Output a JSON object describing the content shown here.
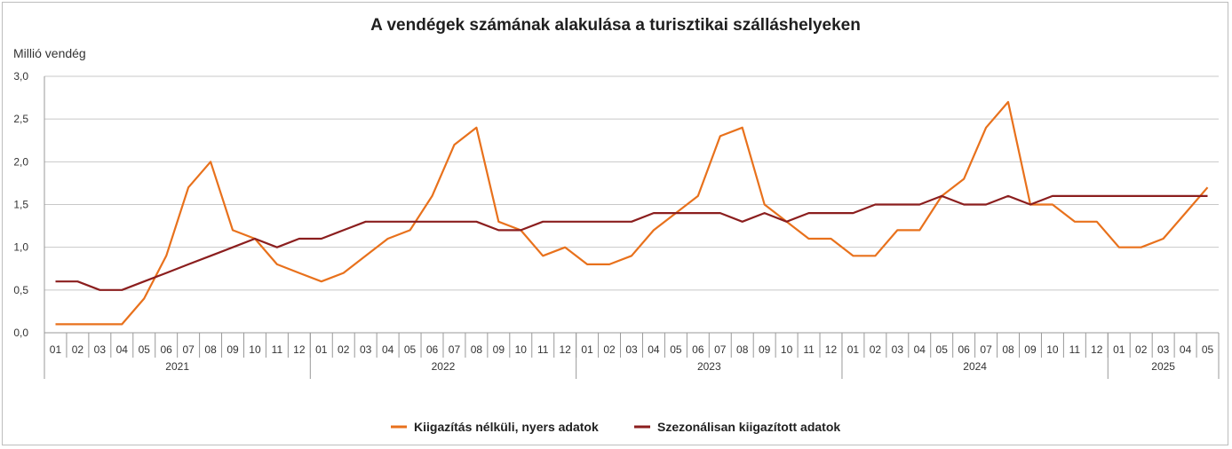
{
  "chart_data": {
    "type": "line",
    "title": "A vendégek számának alakulása a turisztikai szálláshelyeken",
    "ylabel": "Millió vendég",
    "ylim": [
      0,
      3
    ],
    "yticks": [
      "0,0",
      "0,5",
      "1,0",
      "1,5",
      "2,0",
      "2,5",
      "3,0"
    ],
    "ytick_values": [
      0,
      0.5,
      1,
      1.5,
      2,
      2.5,
      3
    ],
    "grid": true,
    "legend_position": "bottom",
    "years": [
      {
        "label": "2021",
        "months": [
          "01",
          "02",
          "03",
          "04",
          "05",
          "06",
          "07",
          "08",
          "09",
          "10",
          "11",
          "12"
        ]
      },
      {
        "label": "2022",
        "months": [
          "01",
          "02",
          "03",
          "04",
          "05",
          "06",
          "07",
          "08",
          "09",
          "10",
          "11",
          "12"
        ]
      },
      {
        "label": "2023",
        "months": [
          "01",
          "02",
          "03",
          "04",
          "05",
          "06",
          "07",
          "08",
          "09",
          "10",
          "11",
          "12"
        ]
      },
      {
        "label": "2024",
        "months": [
          "01",
          "02",
          "03",
          "04",
          "05",
          "06",
          "07",
          "08",
          "09",
          "10",
          "11",
          "12"
        ]
      },
      {
        "label": "2025",
        "months": [
          "01",
          "02",
          "03",
          "04",
          "05"
        ]
      }
    ],
    "series": [
      {
        "name": "Kiigazítás nélküli, nyers adatok",
        "color": "#e8711c",
        "values": [
          0.1,
          0.1,
          0.1,
          0.1,
          0.4,
          0.9,
          1.7,
          2.0,
          1.2,
          1.1,
          0.8,
          0.7,
          0.6,
          0.7,
          0.9,
          1.1,
          1.2,
          1.6,
          2.2,
          2.4,
          1.3,
          1.2,
          0.9,
          1.0,
          0.8,
          0.8,
          0.9,
          1.2,
          1.4,
          1.6,
          2.3,
          2.4,
          1.5,
          1.3,
          1.1,
          1.1,
          0.9,
          0.9,
          1.2,
          1.2,
          1.6,
          1.8,
          2.4,
          2.7,
          1.5,
          1.5,
          1.3,
          1.3,
          1.0,
          1.0,
          1.1,
          1.4,
          1.7
        ]
      },
      {
        "name": "Szezonálisan kiigazított adatok",
        "color": "#8b1e1e",
        "values": [
          0.6,
          0.6,
          0.5,
          0.5,
          0.6,
          0.7,
          0.8,
          0.9,
          1.0,
          1.1,
          1.0,
          1.1,
          1.1,
          1.2,
          1.3,
          1.3,
          1.3,
          1.3,
          1.3,
          1.3,
          1.2,
          1.2,
          1.3,
          1.3,
          1.3,
          1.3,
          1.3,
          1.4,
          1.4,
          1.4,
          1.4,
          1.3,
          1.4,
          1.3,
          1.4,
          1.4,
          1.4,
          1.5,
          1.5,
          1.5,
          1.6,
          1.5,
          1.5,
          1.6,
          1.5,
          1.6,
          1.6,
          1.6,
          1.6,
          1.6,
          1.6,
          1.6,
          1.6
        ]
      }
    ]
  }
}
